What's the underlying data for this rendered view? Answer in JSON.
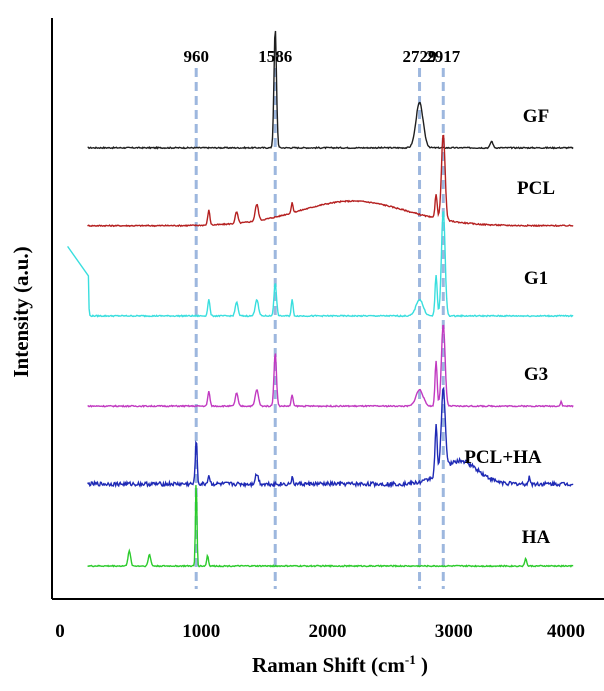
{
  "chart_data": {
    "type": "line",
    "title": "",
    "xlabel": "Raman Shift (cm",
    "xlabel_sup": "-1",
    "xlabel_close": " )",
    "ylabel": "Intensity (a.u.)",
    "xlim": [
      0,
      4000
    ],
    "x_ticks": [
      0,
      1000,
      2000,
      3000,
      4000
    ],
    "x_tick_labels": [
      "0",
      "1000",
      "2000",
      "3000",
      "4000"
    ],
    "y_ticks_shown": false,
    "grid": false,
    "reference_lines": [
      {
        "label": "960",
        "x": 960
      },
      {
        "label": "1586",
        "x": 1586
      },
      {
        "label": "2729",
        "x": 2729
      },
      {
        "label": "2917",
        "x": 2917
      }
    ],
    "reference_line_color": "#9db7de",
    "series": [
      {
        "name": "GF",
        "color": "#1f1f1f",
        "offset": 5.1,
        "x_start": 100,
        "peaks": [
          [
            1586,
            1.45,
            14
          ],
          [
            2729,
            0.55,
            40
          ],
          [
            3300,
            0.08,
            15
          ]
        ]
      },
      {
        "name": "PCL",
        "color": "#b52020",
        "offset": 4.15,
        "x_start": 100,
        "peaks": [
          [
            1060,
            0.18,
            12
          ],
          [
            1280,
            0.14,
            15
          ],
          [
            1440,
            0.2,
            18
          ],
          [
            1720,
            0.12,
            10
          ],
          [
            2860,
            0.3,
            12
          ],
          [
            2917,
            1.05,
            20
          ]
        ],
        "broad": [
          2200,
          0.3,
          600
        ]
      },
      {
        "name": "G1",
        "color": "#39dede",
        "offset": 3.05,
        "x_start": 100,
        "peaks": [
          [
            100,
            0.85,
            8
          ],
          [
            1060,
            0.2,
            12
          ],
          [
            1280,
            0.17,
            15
          ],
          [
            1440,
            0.2,
            18
          ],
          [
            1586,
            0.4,
            14
          ],
          [
            1720,
            0.2,
            10
          ],
          [
            2729,
            0.2,
            40
          ],
          [
            2860,
            0.5,
            12
          ],
          [
            2917,
            1.3,
            20
          ]
        ]
      },
      {
        "name": "G3",
        "color": "#c13ac1",
        "offset": 1.95,
        "x_start": 100,
        "peaks": [
          [
            1060,
            0.18,
            12
          ],
          [
            1280,
            0.16,
            15
          ],
          [
            1440,
            0.2,
            18
          ],
          [
            1586,
            0.65,
            14
          ],
          [
            1720,
            0.14,
            10
          ],
          [
            2729,
            0.2,
            40
          ],
          [
            2860,
            0.55,
            12
          ],
          [
            2917,
            1.0,
            20
          ],
          [
            3850,
            0.06,
            8
          ]
        ]
      },
      {
        "name": "PCL+HA",
        "color": "#1f2ab5",
        "offset": 1.0,
        "x_start": 100,
        "noise": 0.05,
        "peaks": [
          [
            960,
            0.55,
            10
          ],
          [
            1060,
            0.1,
            12
          ],
          [
            1440,
            0.12,
            18
          ],
          [
            1720,
            0.07,
            10
          ],
          [
            2860,
            0.6,
            12
          ],
          [
            2917,
            1.0,
            22
          ],
          [
            3600,
            0.08,
            10
          ]
        ],
        "broad": [
          3050,
          0.28,
          200
        ]
      },
      {
        "name": "HA",
        "color": "#2ccb2c",
        "offset": 0.0,
        "x_start": 100,
        "peaks": [
          [
            430,
            0.18,
            15
          ],
          [
            590,
            0.14,
            14
          ],
          [
            960,
            1.05,
            8
          ],
          [
            1050,
            0.13,
            10
          ],
          [
            3570,
            0.1,
            10
          ]
        ]
      }
    ]
  }
}
